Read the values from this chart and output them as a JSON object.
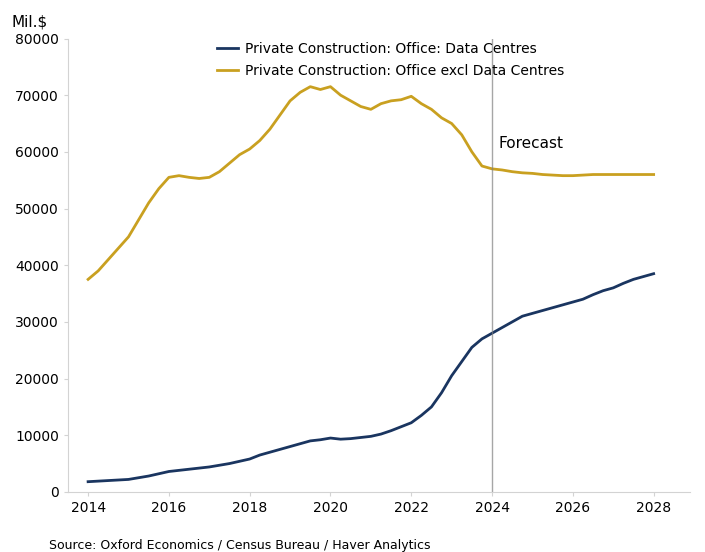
{
  "ylabel": "Mil.$",
  "source": "Source: Oxford Economics / Census Bureau / Haver Analytics",
  "forecast_label": "Forecast",
  "forecast_x": 2024,
  "legend1": "Private Construction: Office: Data Centres",
  "legend2": "Private Construction: Office excl Data Centres",
  "color1": "#1a3560",
  "color2": "#c9a020",
  "xlim": [
    2013.5,
    2028.9
  ],
  "ylim": [
    0,
    80000
  ],
  "yticks": [
    0,
    10000,
    20000,
    30000,
    40000,
    50000,
    60000,
    70000,
    80000
  ],
  "xticks": [
    2014,
    2016,
    2018,
    2020,
    2022,
    2024,
    2026,
    2028
  ],
  "data_centres": {
    "x": [
      2014,
      2014.25,
      2014.5,
      2014.75,
      2015,
      2015.25,
      2015.5,
      2015.75,
      2016,
      2016.25,
      2016.5,
      2016.75,
      2017,
      2017.25,
      2017.5,
      2017.75,
      2018,
      2018.25,
      2018.5,
      2018.75,
      2019,
      2019.25,
      2019.5,
      2019.75,
      2020,
      2020.25,
      2020.5,
      2020.75,
      2021,
      2021.25,
      2021.5,
      2021.75,
      2022,
      2022.25,
      2022.5,
      2022.75,
      2023,
      2023.25,
      2023.5,
      2023.75,
      2024,
      2024.25,
      2024.5,
      2024.75,
      2025,
      2025.25,
      2025.5,
      2025.75,
      2026,
      2026.25,
      2026.5,
      2026.75,
      2027,
      2027.25,
      2027.5,
      2027.75,
      2028
    ],
    "y": [
      1800,
      1900,
      2000,
      2100,
      2200,
      2500,
      2800,
      3200,
      3600,
      3800,
      4000,
      4200,
      4400,
      4700,
      5000,
      5400,
      5800,
      6500,
      7000,
      7500,
      8000,
      8500,
      9000,
      9200,
      9500,
      9300,
      9400,
      9600,
      9800,
      10200,
      10800,
      11500,
      12200,
      13500,
      15000,
      17500,
      20500,
      23000,
      25500,
      27000,
      28000,
      29000,
      30000,
      31000,
      31500,
      32000,
      32500,
      33000,
      33500,
      34000,
      34800,
      35500,
      36000,
      36800,
      37500,
      38000,
      38500
    ]
  },
  "office_excl": {
    "x": [
      2014,
      2014.25,
      2014.5,
      2014.75,
      2015,
      2015.25,
      2015.5,
      2015.75,
      2016,
      2016.25,
      2016.5,
      2016.75,
      2017,
      2017.25,
      2017.5,
      2017.75,
      2018,
      2018.25,
      2018.5,
      2018.75,
      2019,
      2019.25,
      2019.5,
      2019.75,
      2020,
      2020.25,
      2020.5,
      2020.75,
      2021,
      2021.25,
      2021.5,
      2021.75,
      2022,
      2022.25,
      2022.5,
      2022.75,
      2023,
      2023.25,
      2023.5,
      2023.75,
      2024,
      2024.25,
      2024.5,
      2024.75,
      2025,
      2025.25,
      2025.5,
      2025.75,
      2026,
      2026.25,
      2026.5,
      2026.75,
      2027,
      2027.25,
      2027.5,
      2027.75,
      2028
    ],
    "y": [
      37500,
      39000,
      41000,
      43000,
      45000,
      48000,
      51000,
      53500,
      55500,
      55800,
      55500,
      55300,
      55500,
      56500,
      58000,
      59500,
      60500,
      62000,
      64000,
      66500,
      69000,
      70500,
      71500,
      71000,
      71500,
      70000,
      69000,
      68000,
      67500,
      68500,
      69000,
      69200,
      69800,
      68500,
      67500,
      66000,
      65000,
      63000,
      60000,
      57500,
      57000,
      56800,
      56500,
      56300,
      56200,
      56000,
      55900,
      55800,
      55800,
      55900,
      56000,
      56000,
      56000,
      56000,
      56000,
      56000,
      56000
    ]
  }
}
